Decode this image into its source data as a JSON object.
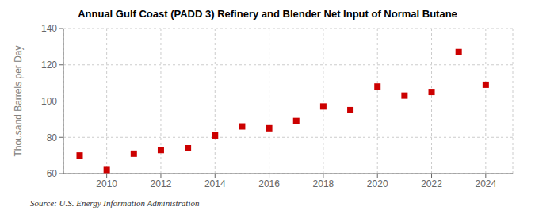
{
  "chart_data": {
    "type": "scatter",
    "title": "Annual Gulf Coast (PADD 3) Refinery and Blender Net Input of Normal Butane",
    "y_label": "Thousand Barrels per Day",
    "annotations": [
      "Source: U.S. Energy Information Administration"
    ],
    "x": [
      2009,
      2010,
      2011,
      2012,
      2013,
      2014,
      2015,
      2016,
      2017,
      2018,
      2019,
      2020,
      2021,
      2022,
      2023,
      2024
    ],
    "values": [
      70.0,
      62.0,
      71.0,
      73.0,
      74.0,
      81.0,
      86.0,
      85.0,
      89.0,
      97.0,
      95.0,
      108.0,
      103.0,
      105.0,
      127.0,
      109.0
    ],
    "color": "#cc0000",
    "marker": "square",
    "xlim": [
      2008.4,
      2025.0
    ],
    "xticks": [
      2010,
      2012,
      2014,
      2016,
      2018,
      2020,
      2022,
      2024
    ],
    "ylim": [
      60,
      140
    ],
    "yticks": [
      60,
      80,
      100,
      120,
      140
    ],
    "grid": true
  }
}
